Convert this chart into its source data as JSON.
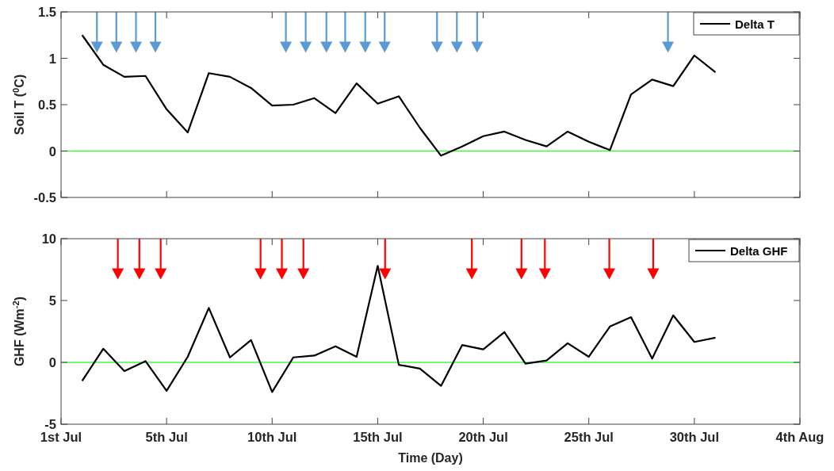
{
  "chart_data": [
    {
      "type": "line",
      "ylabel": "Soil T ($^{0}$C)",
      "categories": [
        null,
        null,
        null,
        null,
        null,
        null,
        null,
        null,
        null,
        null,
        null,
        null,
        null,
        null,
        null,
        null,
        null,
        null,
        null,
        null,
        null,
        null,
        null,
        null,
        null,
        null,
        null,
        null,
        null,
        null,
        null,
        null,
        null,
        null,
        null,
        null
      ],
      "series": [
        {
          "name": "Delta T",
          "color": "#000000",
          "values": [
            null,
            1.25,
            0.93,
            0.8,
            0.81,
            0.45,
            0.2,
            0.84,
            0.8,
            0.68,
            0.49,
            0.5,
            0.57,
            0.41,
            0.73,
            0.51,
            0.59,
            0.25,
            -0.05,
            0.05,
            0.16,
            0.21,
            0.12,
            0.05,
            0.21,
            0.1,
            0.01,
            0.61,
            0.77,
            0.7,
            1.03,
            0.85,
            null,
            null,
            null,
            null
          ]
        }
      ],
      "ylim": [
        -0.5,
        1.5
      ],
      "yticks": [
        -0.5,
        0,
        0.5,
        1,
        1.5
      ],
      "tick_labels": "y",
      "ref_lines": [
        {
          "axis": "y",
          "value": 0,
          "color": "#4ef04e"
        }
      ],
      "legend": "top right",
      "line_style": "solid"
    },
    {
      "type": "line",
      "ylabel": "GHF (Wm$^{-2}$)",
      "xlabel": "Time (Day)",
      "categories": [
        "1st Jul",
        null,
        null,
        null,
        null,
        "5th Jul",
        null,
        null,
        null,
        null,
        "10th Jul",
        null,
        null,
        null,
        null,
        "15th Jul",
        null,
        null,
        null,
        null,
        "20th Jul",
        null,
        null,
        null,
        null,
        "25th Jul",
        null,
        null,
        null,
        null,
        "30th Jul",
        null,
        null,
        null,
        null,
        "4th Aug"
      ],
      "series": [
        {
          "name": "Delta GHF",
          "color": "#000000",
          "values": [
            null,
            -1.5,
            1.1,
            -0.7,
            0.1,
            -2.3,
            0.45,
            4.4,
            0.4,
            1.8,
            -2.4,
            0.4,
            0.55,
            1.3,
            0.45,
            7.8,
            -0.2,
            -0.5,
            -1.9,
            1.4,
            1.05,
            2.45,
            -0.1,
            0.15,
            1.55,
            0.45,
            2.9,
            3.65,
            0.3,
            3.8,
            1.65,
            2.0,
            null,
            null,
            null,
            null
          ]
        }
      ],
      "ylim": [
        -5,
        10
      ],
      "yticks": [
        -5,
        0,
        5,
        10
      ],
      "ref_lines": [
        {
          "axis": "y",
          "value": 0,
          "color": "#4ef04e"
        }
      ],
      "legend": "top right",
      "line_style": "solid"
    }
  ]
}
